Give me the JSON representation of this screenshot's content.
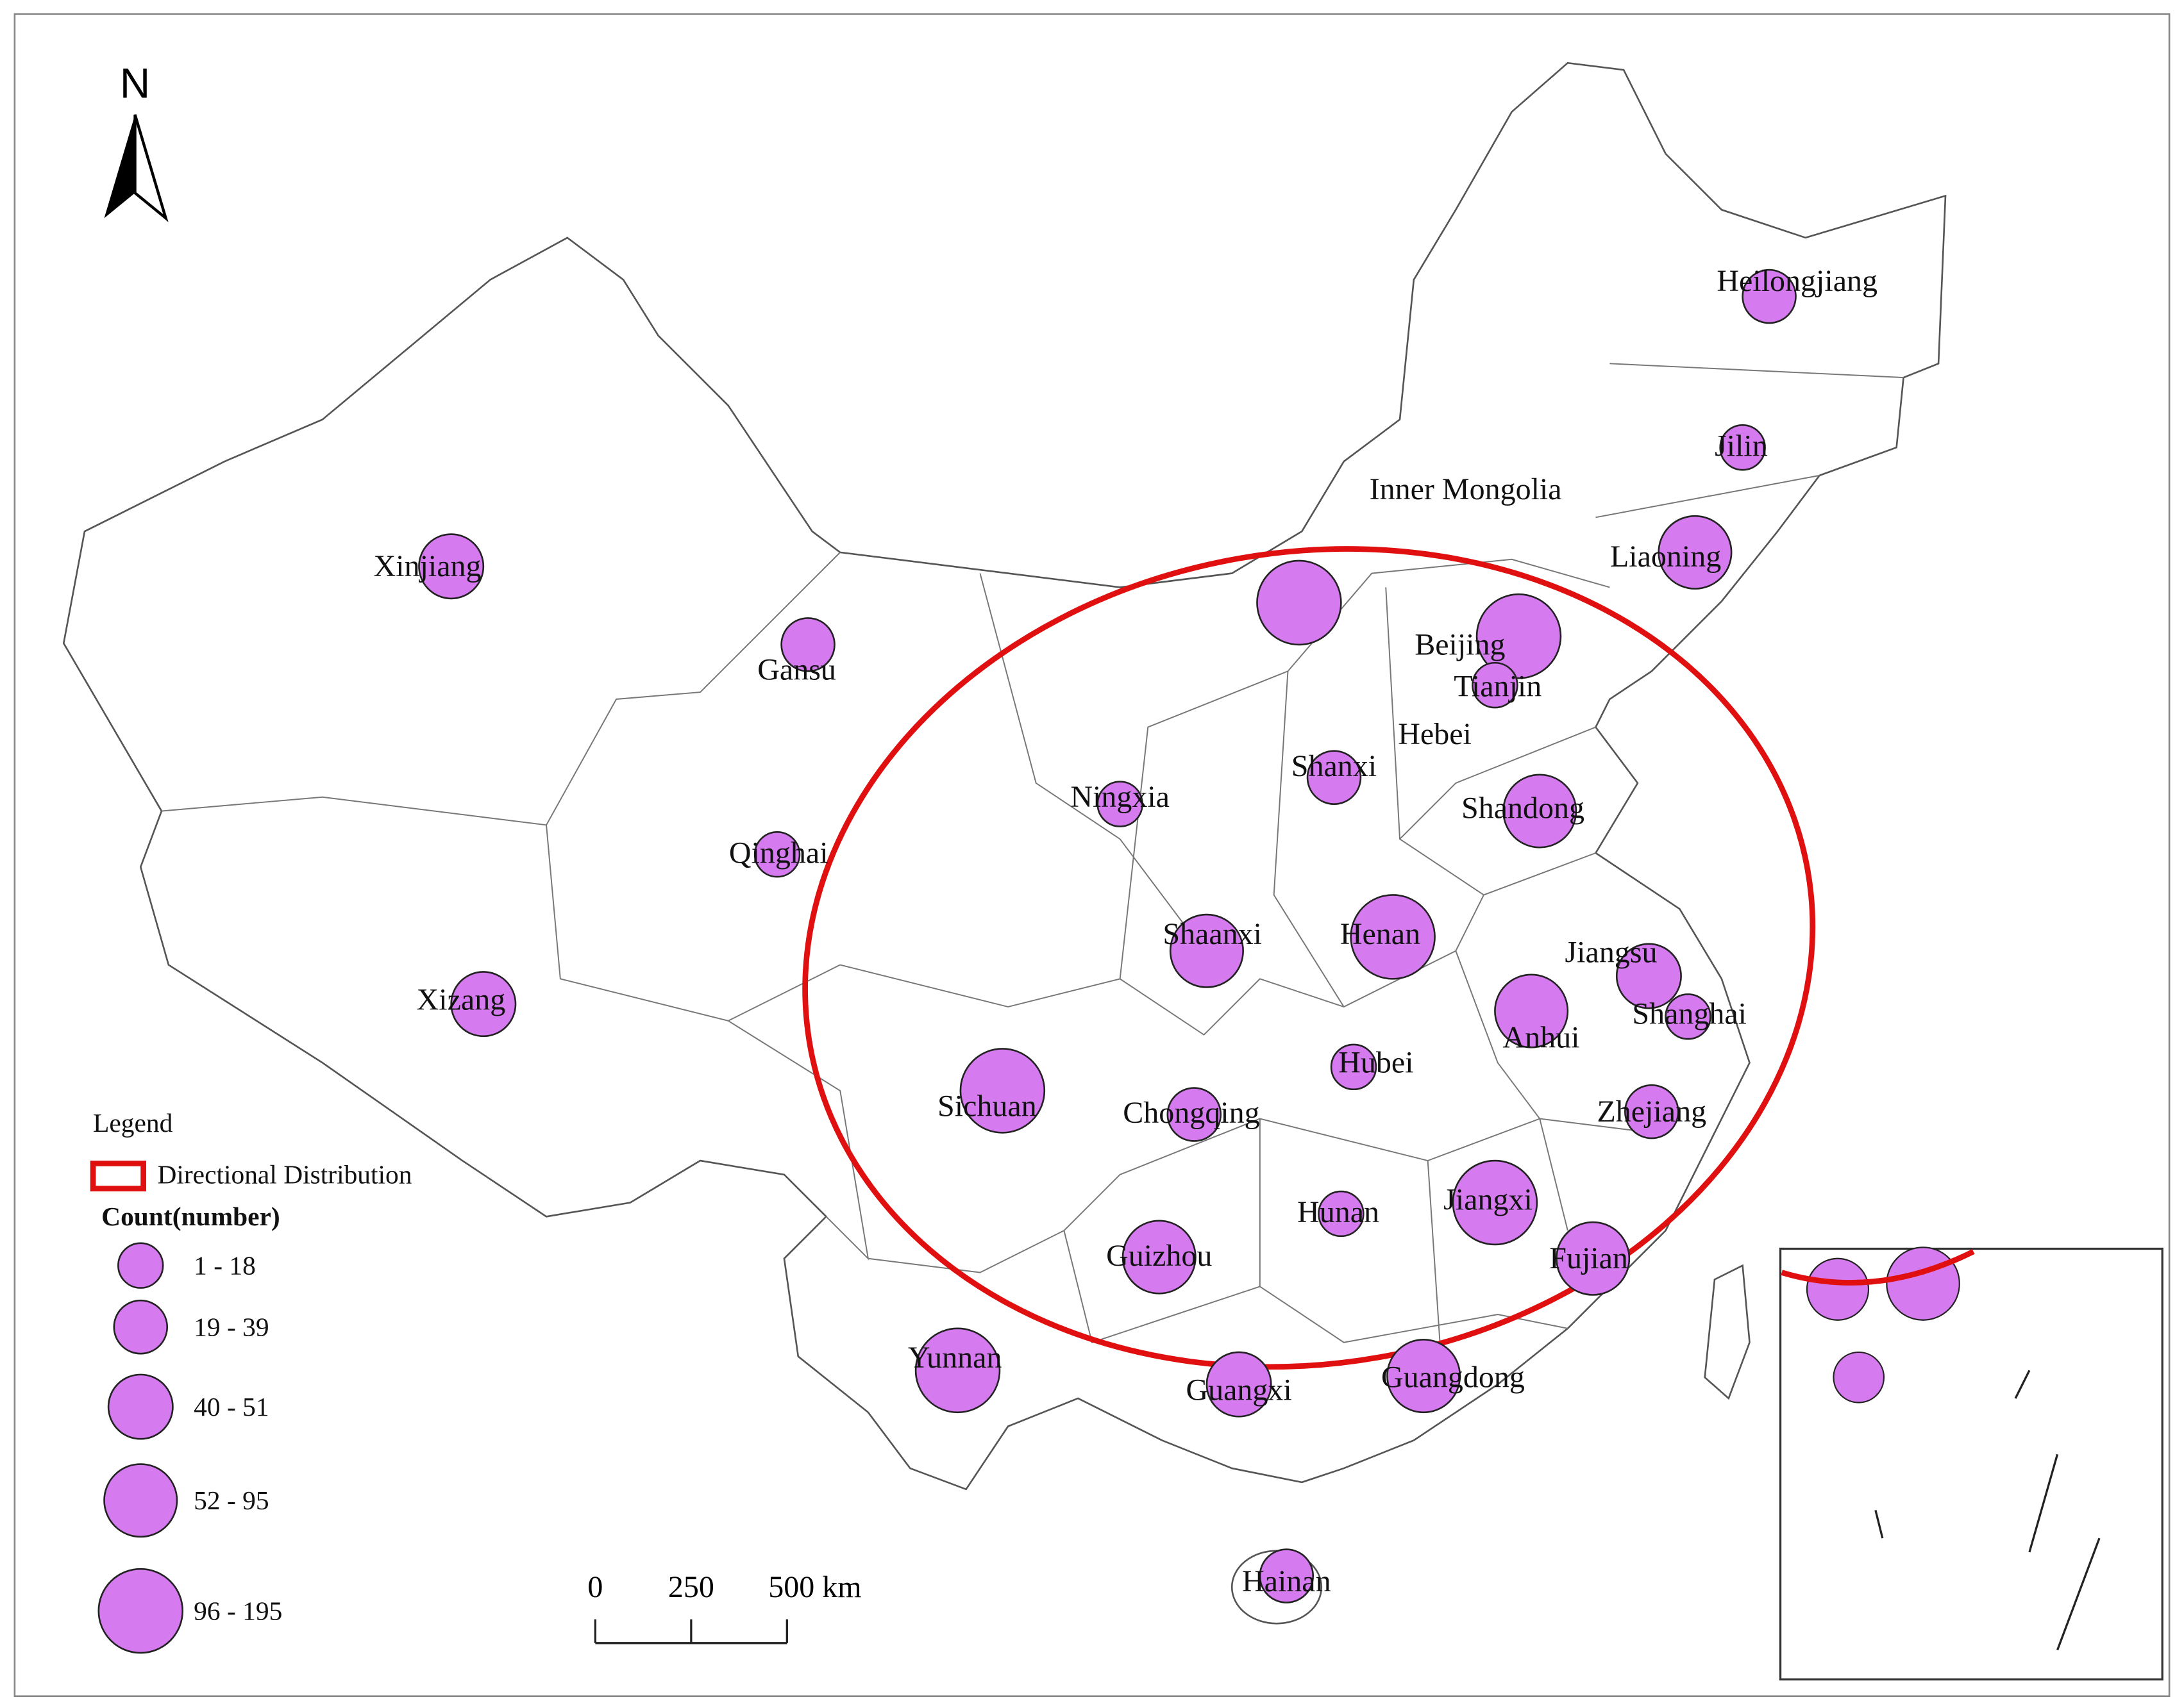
{
  "north": "N",
  "legend": {
    "title": "Legend",
    "ellipse_label": "Directional Distribution",
    "count_title": "Count(number)",
    "classes": [
      "1 - 18",
      "19 - 39",
      "40 - 51",
      "52 - 95",
      "96 - 195"
    ]
  },
  "scale_bar": {
    "ticks": [
      0,
      250,
      {
        "value": 500,
        "label": "500 km"
      }
    ]
  },
  "provinces": [
    {
      "name": "Heilongjiang",
      "class": 1
    },
    {
      "name": "Jilin",
      "class": 0
    },
    {
      "name": "Liaoning",
      "class": 3
    },
    {
      "name": "Inner Mongolia",
      "class": 4
    },
    {
      "name": "Beijing",
      "class": 4
    },
    {
      "name": "Tianjin",
      "class": 0
    },
    {
      "name": "Hebei",
      "class": null
    },
    {
      "name": "Shanxi",
      "class": 1
    },
    {
      "name": "Shandong",
      "class": 3
    },
    {
      "name": "Ningxia",
      "class": 0
    },
    {
      "name": "Gansu",
      "class": 1
    },
    {
      "name": "Xinjiang",
      "class": 2
    },
    {
      "name": "Qinghai",
      "class": 0
    },
    {
      "name": "Xizang",
      "class": 2
    },
    {
      "name": "Shaanxi",
      "class": 3
    },
    {
      "name": "Henan",
      "class": 4
    },
    {
      "name": "Jiangsu",
      "class": 2
    },
    {
      "name": "Shanghai",
      "class": 0
    },
    {
      "name": "Anhui",
      "class": 3
    },
    {
      "name": "Hubei",
      "class": 0
    },
    {
      "name": "Sichuan",
      "class": 4
    },
    {
      "name": "Chongqing",
      "class": 1
    },
    {
      "name": "Zhejiang",
      "class": 1
    },
    {
      "name": "Jiangxi",
      "class": 4
    },
    {
      "name": "Hunan",
      "class": 0
    },
    {
      "name": "Guizhou",
      "class": 3
    },
    {
      "name": "Fujian",
      "class": 3
    },
    {
      "name": "Yunnan",
      "class": 4
    },
    {
      "name": "Guangxi",
      "class": 2
    },
    {
      "name": "Guangdong",
      "class": 3
    },
    {
      "name": "Hainan",
      "class": 1
    }
  ]
}
